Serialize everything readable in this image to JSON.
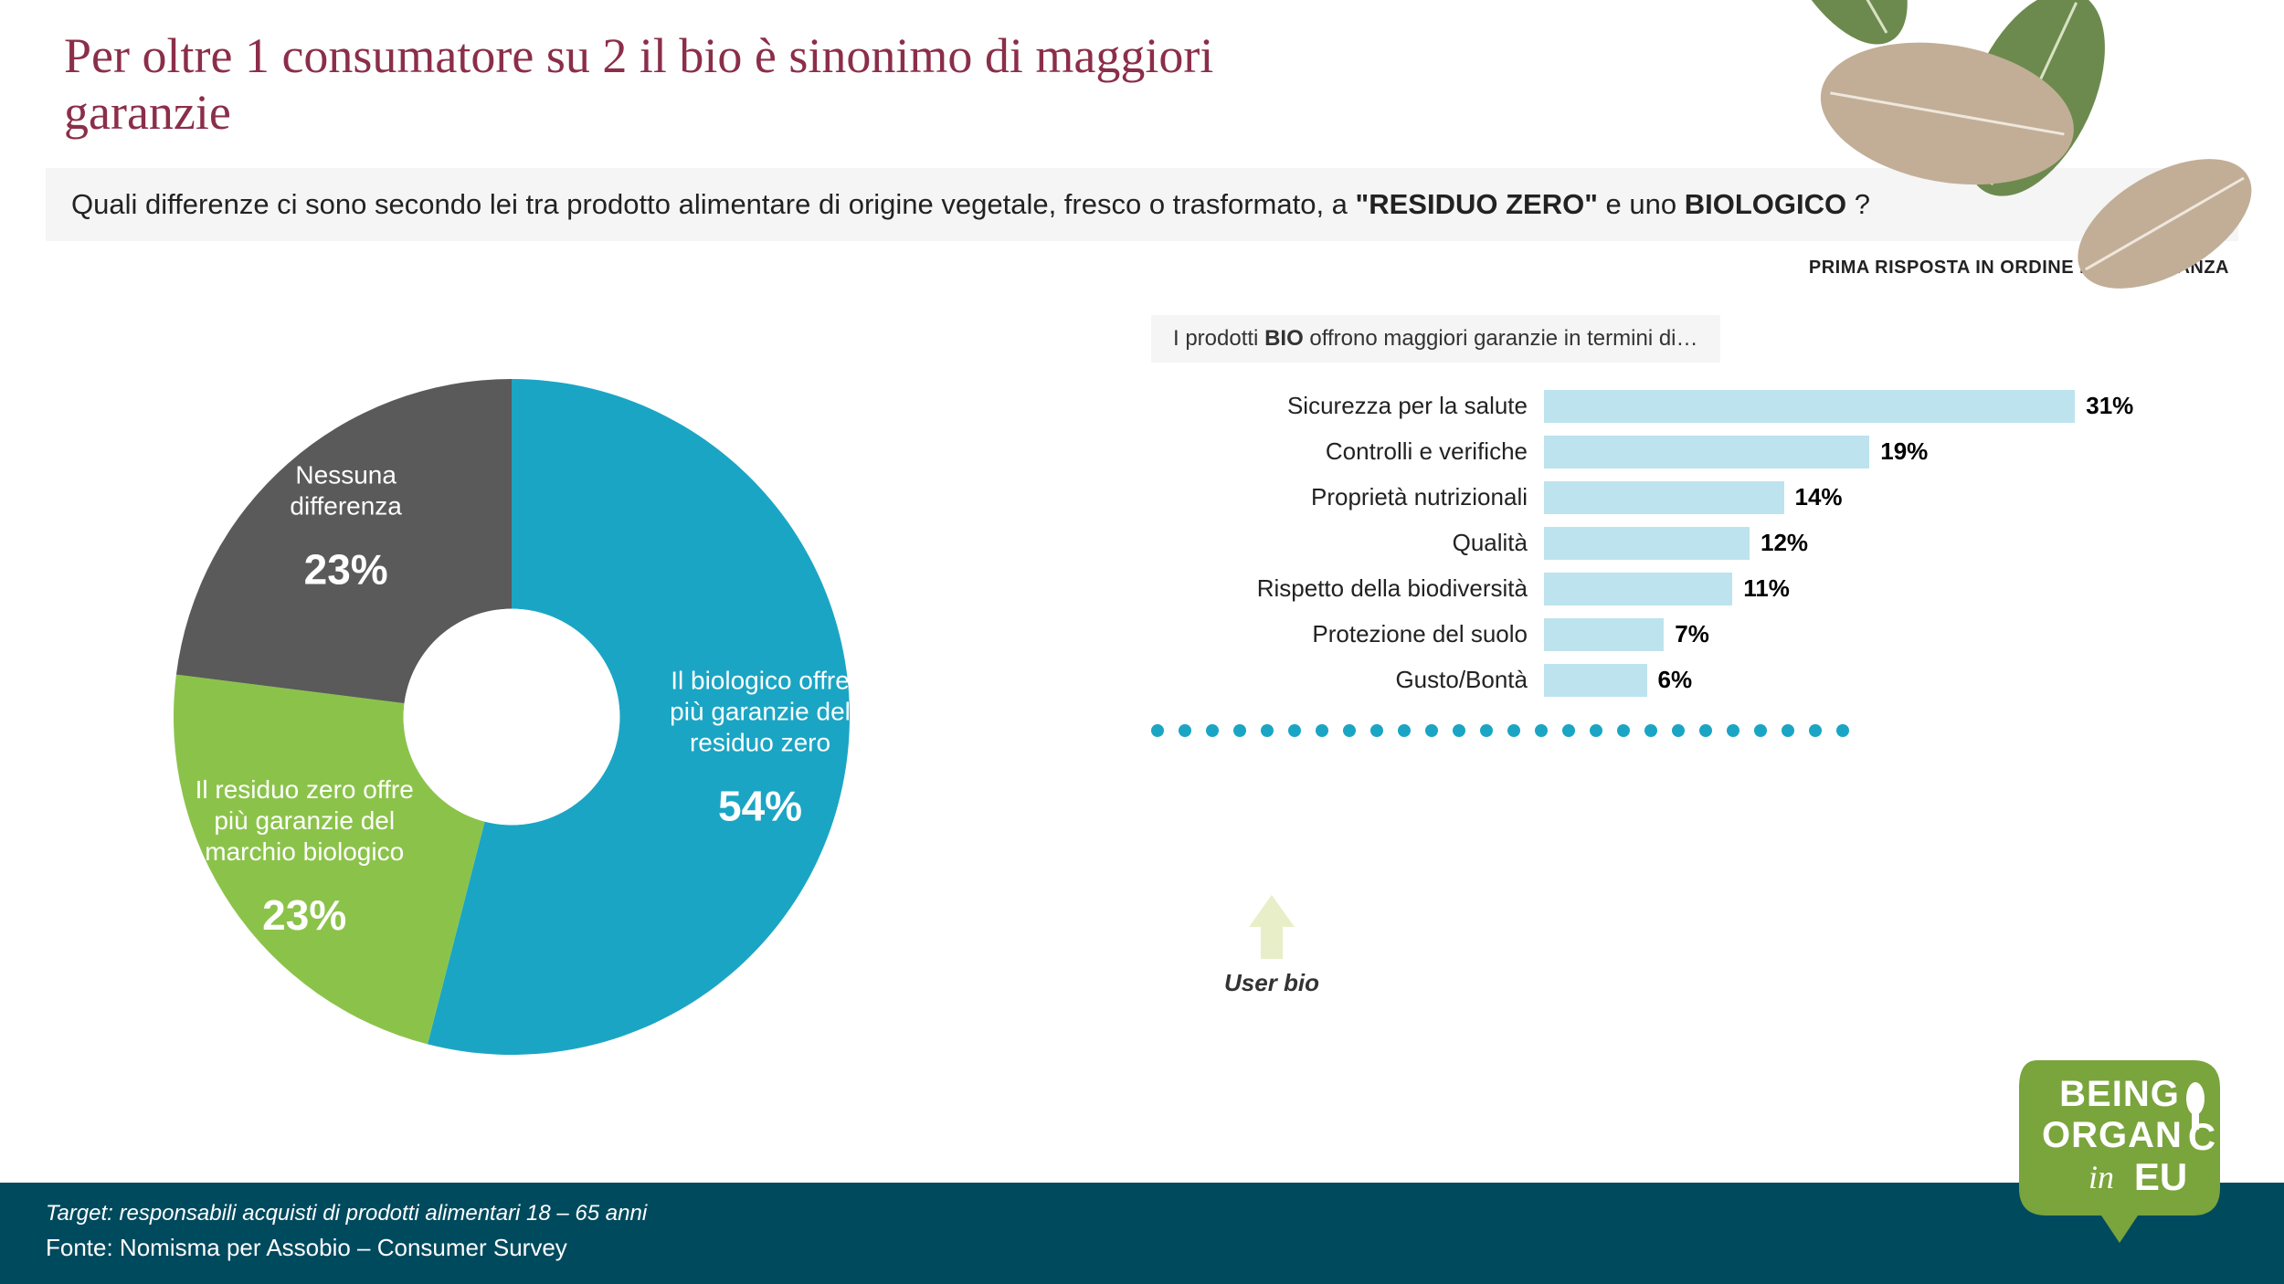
{
  "title": "Per oltre 1 consumatore su 2 il  bio è sinonimo di maggiori garanzie",
  "question_pre": "Quali differenze ci sono secondo lei tra prodotto alimentare di origine vegetale, fresco o trasformato, a ",
  "question_bold1": "\"RESIDUO ZERO\"",
  "question_mid": " e uno ",
  "question_bold2": "BIOLOGICO",
  "question_end": "?",
  "subnote": "PRIMA RISPOSTA IN ORDINE DI IMPORTANZA",
  "donut": {
    "type": "donut",
    "inner_radius_ratio": 0.32,
    "slices": [
      {
        "label_line1": "Il biologico offre",
        "label_line2": "più garanzie del",
        "label_line3": "residuo zero",
        "value_label": "54%",
        "value": 54,
        "color": "#1ba5c4",
        "text_color": "#ffffff"
      },
      {
        "label_line1": "Il residuo zero offre",
        "label_line2": "più garanzie del",
        "label_line3": "marchio biologico",
        "value_label": "23%",
        "value": 23,
        "color": "#8bc34a",
        "text_color": "#ffffff"
      },
      {
        "label_line1": "Nessuna",
        "label_line2": "differenza",
        "label_line3": "",
        "value_label": "23%",
        "value": 23,
        "color": "#5a5a5a",
        "text_color": "#ffffff"
      }
    ],
    "start_angle_deg": -90,
    "background_color": "#ffffff"
  },
  "bars": {
    "title_pre": "I prodotti ",
    "title_bold": "BIO",
    "title_post": " offrono maggiori garanzie in termini di…",
    "type": "bar-horizontal",
    "max_pct": 40,
    "bar_color": "#bde3ee",
    "label_fontsize": 26,
    "value_fontsize": 26,
    "items": [
      {
        "label": "Sicurezza per la salute",
        "value": 31,
        "value_label": "31%"
      },
      {
        "label": "Controlli e verifiche",
        "value": 19,
        "value_label": "19%"
      },
      {
        "label": "Proprietà nutrizionali",
        "value": 14,
        "value_label": "14%"
      },
      {
        "label": "Qualità",
        "value": 12,
        "value_label": "12%"
      },
      {
        "label": "Rispetto della biodiversità",
        "value": 11,
        "value_label": "11%"
      },
      {
        "label": "Protezione del suolo",
        "value": 7,
        "value_label": "7%"
      },
      {
        "label": "Gusto/Bontà",
        "value": 6,
        "value_label": "6%"
      }
    ]
  },
  "dots": {
    "count": 26,
    "color": "#1ba5c4",
    "diameter": 14,
    "gap": 16
  },
  "user_bio_label": "User bio",
  "footer": {
    "line1": "Target: responsabili acquisti di prodotti alimentari 18 – 65 anni",
    "line2": "Fonte: Nomisma per Assobio – Consumer Survey",
    "bg_color": "#004a5e"
  },
  "logo": {
    "line1": "BEING",
    "line2": "ORGAN",
    "line3": "EU",
    "in_text": "in",
    "bg_color": "#7aa43c",
    "text_color": "#ffffff"
  },
  "leaves_colors": {
    "green": "#6d8a4e",
    "brown": "#b9a18a",
    "vein": "#ffffff"
  },
  "arrow_color": "#e8efc8"
}
